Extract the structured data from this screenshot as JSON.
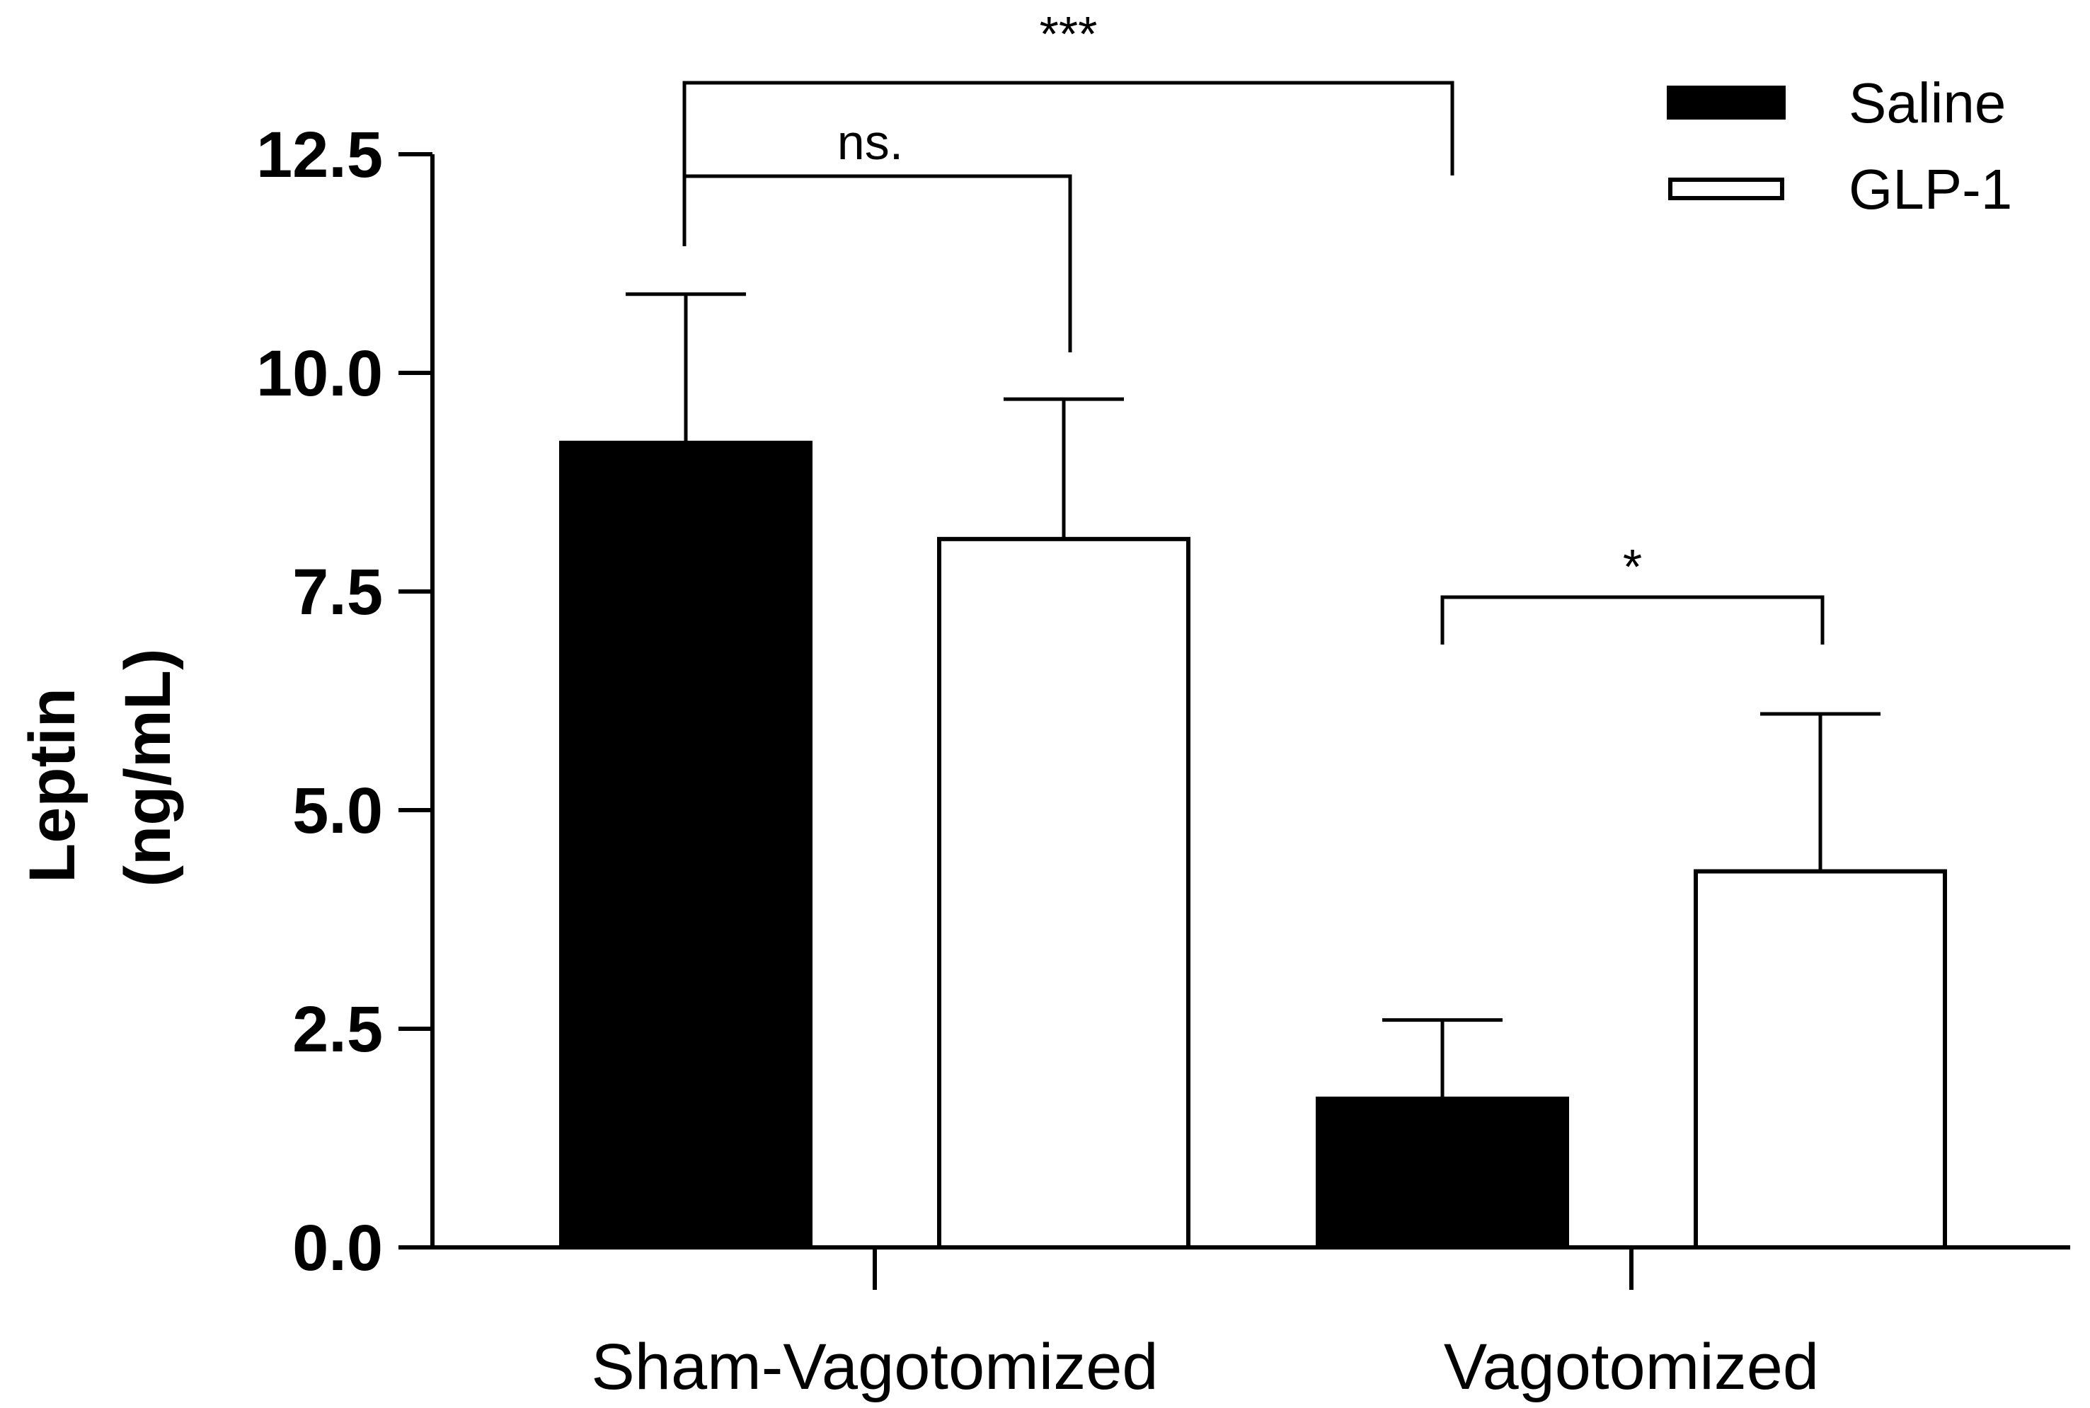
{
  "chart_data": {
    "type": "bar",
    "ylabel_line1": "Leptin",
    "ylabel_line2": "(ng/mL)",
    "xlabel": "",
    "ylim": [
      0,
      12.5
    ],
    "yticks": [
      "0.0",
      "2.5",
      "5.0",
      "7.5",
      "10.0",
      "12.5"
    ],
    "categories": [
      "Sham-Vagotomized",
      "Vagotomized"
    ],
    "series": [
      {
        "name": "Saline",
        "color": "#000000",
        "values": [
          9.2,
          1.7
        ],
        "errors": [
          1.7,
          0.9
        ]
      },
      {
        "name": "GLP-1",
        "color": "#ffffff",
        "values": [
          8.1,
          4.3
        ],
        "errors": [
          1.6,
          1.8
        ]
      }
    ],
    "significance": [
      {
        "label": "***",
        "from": "Sham-Vagotomized Saline",
        "to": "Vagotomized Saline"
      },
      {
        "label": "ns.",
        "from": "Sham-Vagotomized Saline",
        "to": "Sham-Vagotomized GLP-1"
      },
      {
        "label": "*",
        "from": "Vagotomized Saline",
        "to": "Vagotomized GLP-1"
      }
    ]
  }
}
